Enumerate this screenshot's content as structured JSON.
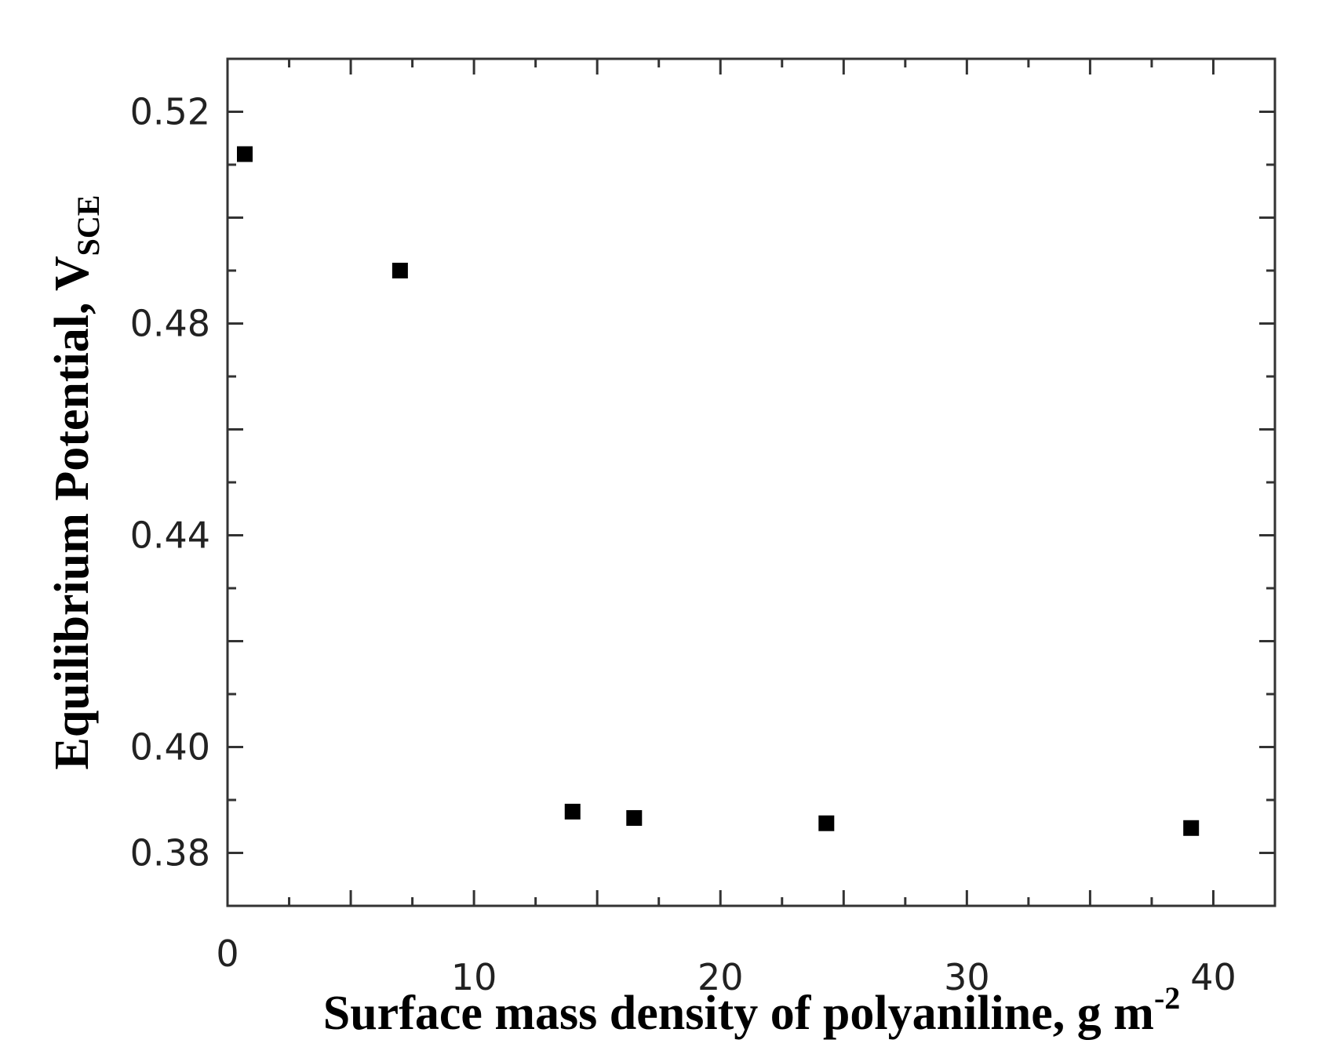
{
  "chart_data": {
    "type": "scatter",
    "title": "",
    "xlabel": {
      "main": "Surface mass density of polyaniline, g m",
      "sup": "-2"
    },
    "ylabel": {
      "main": "Equilibrium  Potential, V",
      "sub": "SCE"
    },
    "xlim": [
      0,
      42.5
    ],
    "ylim": [
      0.37,
      0.53
    ],
    "xticks": [
      {
        "value": 0,
        "label": "0"
      },
      {
        "value": 10,
        "label": "10"
      },
      {
        "value": 20,
        "label": "20"
      },
      {
        "value": 30,
        "label": "30"
      },
      {
        "value": 40,
        "label": "40"
      }
    ],
    "yticks": [
      {
        "value": 0.38,
        "label": "0.38"
      },
      {
        "value": 0.4,
        "label": "0.40"
      },
      {
        "value": 0.44,
        "label": "0.44"
      },
      {
        "value": 0.48,
        "label": "0.48"
      },
      {
        "value": 0.52,
        "label": "0.52"
      }
    ],
    "grid": false,
    "legend": "none",
    "marker": {
      "shape": "square",
      "color": "#000000"
    },
    "series": [
      {
        "points": [
          {
            "x": 0.7,
            "y": 0.512
          },
          {
            "x": 7.0,
            "y": 0.49
          },
          {
            "x": 14.0,
            "y": 0.3878
          },
          {
            "x": 16.5,
            "y": 0.3866
          },
          {
            "x": 24.3,
            "y": 0.3856
          },
          {
            "x": 39.1,
            "y": 0.3847
          }
        ]
      }
    ]
  }
}
